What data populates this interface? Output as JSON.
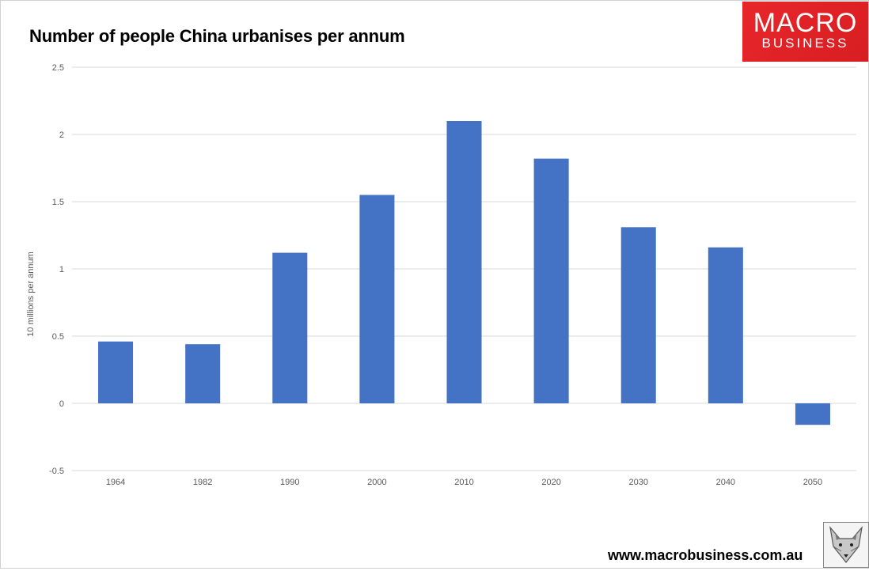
{
  "chart_data": {
    "type": "bar",
    "title": "Number of people China urbanises per annum",
    "ylabel": "10 millions per annum",
    "xlabel": "",
    "categories": [
      "1964",
      "1982",
      "1990",
      "2000",
      "2010",
      "2020",
      "2030",
      "2040",
      "2050"
    ],
    "values": [
      0.46,
      0.44,
      1.12,
      1.55,
      2.1,
      1.82,
      1.31,
      1.16,
      -0.16
    ],
    "ylim": [
      -0.5,
      2.5
    ],
    "yticks": [
      -0.5,
      0,
      0.5,
      1,
      1.5,
      2,
      2.5
    ],
    "ytick_labels": [
      "-0.5",
      "0",
      "0.5",
      "1",
      "1.5",
      "2",
      "2.5"
    ],
    "grid": true,
    "legend": "none",
    "bar_color": "#4472c4"
  },
  "branding": {
    "logo_line1": "MACRO",
    "logo_line2": "BUSINESS",
    "logo_color": "#e02020",
    "website": "www.macrobusiness.com.au",
    "mascot_icon": "fox-icon"
  }
}
